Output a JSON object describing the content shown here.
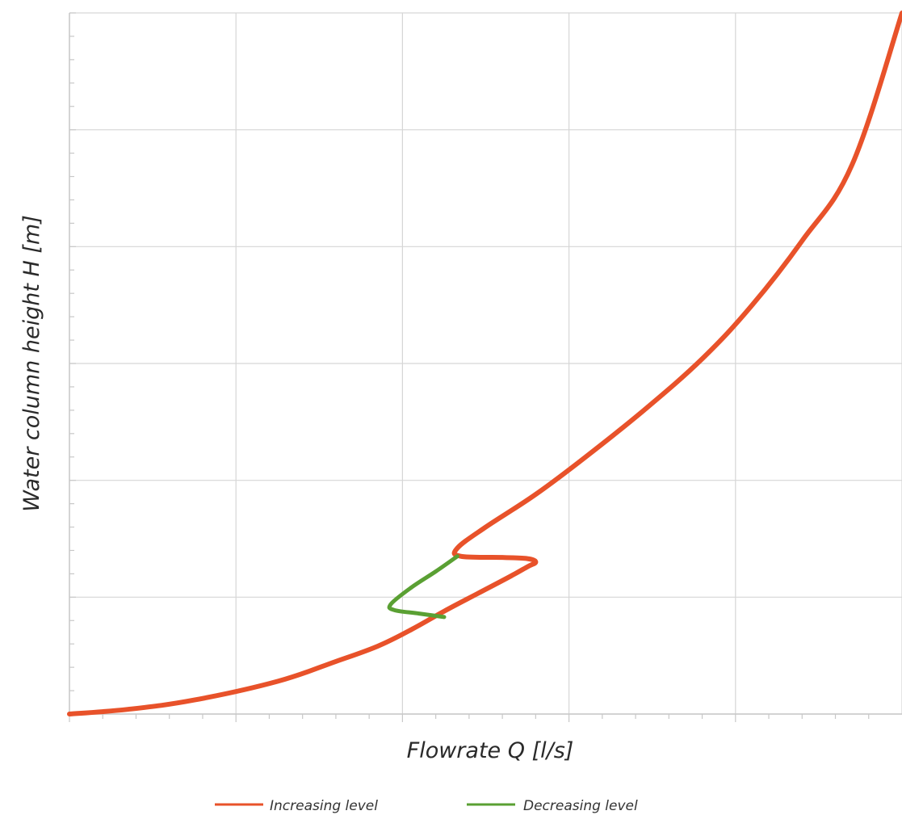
{
  "chart_data": {
    "type": "line",
    "title": "",
    "xlabel": "Flowrate Q  [l/s]",
    "ylabel": "Water column height   H  [m]",
    "x_tick_labels": [],
    "y_tick_labels": [],
    "xlim": [
      0,
      5
    ],
    "ylim": [
      0,
      6
    ],
    "grid": true,
    "legend_position": "bottom-center",
    "series": [
      {
        "name": "Increasing level",
        "color": "#e8522a",
        "x": [
          0.0,
          0.35,
          0.75,
          1.25,
          1.6,
          1.85,
          2.05,
          2.25,
          2.45,
          2.65,
          2.75,
          2.8,
          2.75,
          2.6,
          2.35,
          2.33,
          2.5,
          2.8,
          3.1,
          3.45,
          3.8,
          4.1,
          4.4,
          4.7,
          5.0
        ],
        "y": [
          0.0,
          0.04,
          0.12,
          0.28,
          0.45,
          0.58,
          0.72,
          0.88,
          1.03,
          1.18,
          1.26,
          1.3,
          1.33,
          1.34,
          1.35,
          1.42,
          1.6,
          1.88,
          2.2,
          2.6,
          3.04,
          3.5,
          4.05,
          4.7,
          6.0
        ]
      },
      {
        "name": "Decreasing level",
        "color": "#5aa033",
        "x": [
          2.33,
          2.2,
          2.05,
          1.93,
          1.95,
          2.1,
          2.25
        ],
        "y": [
          1.35,
          1.22,
          1.08,
          0.94,
          0.89,
          0.86,
          0.83
        ]
      }
    ]
  }
}
